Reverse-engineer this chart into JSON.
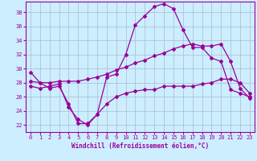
{
  "xlabel": "Windchill (Refroidissement éolien,°C)",
  "background_color": "#cceeff",
  "line_color": "#990099",
  "grid_color": "#aabbcc",
  "xlim": [
    -0.5,
    23.5
  ],
  "ylim": [
    21.0,
    39.5
  ],
  "xticks": [
    0,
    1,
    2,
    3,
    4,
    5,
    6,
    7,
    8,
    9,
    10,
    11,
    12,
    13,
    14,
    15,
    16,
    17,
    18,
    19,
    20,
    21,
    22,
    23
  ],
  "yticks": [
    22,
    24,
    26,
    28,
    30,
    32,
    34,
    36,
    38
  ],
  "hours": [
    0,
    1,
    2,
    3,
    4,
    5,
    6,
    7,
    8,
    9,
    10,
    11,
    12,
    13,
    14,
    15,
    16,
    17,
    18,
    19,
    20,
    21,
    22,
    23
  ],
  "line1": [
    29.5,
    28.0,
    27.2,
    27.5,
    25.0,
    22.2,
    22.2,
    23.5,
    28.8,
    29.2,
    32.0,
    36.2,
    37.5,
    38.8,
    39.2,
    38.5,
    35.5,
    33.0,
    33.0,
    31.5,
    31.0,
    27.0,
    26.5,
    26.0
  ],
  "line2": [
    28.2,
    28.0,
    28.0,
    28.2,
    28.2,
    28.2,
    28.5,
    28.8,
    29.2,
    29.8,
    30.2,
    30.8,
    31.2,
    31.8,
    32.2,
    32.8,
    33.2,
    33.5,
    33.2,
    33.2,
    33.5,
    31.0,
    27.2,
    25.8
  ],
  "line3": [
    27.5,
    27.2,
    27.5,
    27.8,
    24.5,
    22.8,
    22.0,
    23.5,
    25.0,
    26.0,
    26.5,
    26.8,
    27.0,
    27.0,
    27.5,
    27.5,
    27.5,
    27.5,
    27.8,
    28.0,
    28.5,
    28.5,
    28.0,
    26.5
  ]
}
